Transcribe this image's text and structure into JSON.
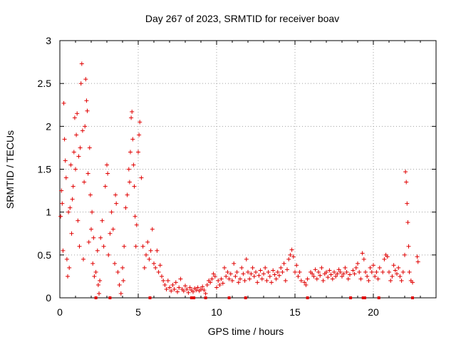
{
  "chart_data": {
    "type": "scatter",
    "title": "Day 267 of 2023, SRMTID for receiver boav",
    "xlabel": "GPS time / hours",
    "ylabel": "SRMTID / TECUs",
    "xlim": [
      0,
      24
    ],
    "ylim": [
      0,
      3
    ],
    "x_ticks": [
      0,
      5,
      10,
      15,
      20
    ],
    "x_tick_labels": [
      "0",
      "5",
      "10",
      "15",
      "20"
    ],
    "y_ticks": [
      0,
      0.5,
      1,
      1.5,
      2,
      2.5,
      3
    ],
    "y_tick_labels": [
      "0",
      "0.5",
      "1",
      "1.5",
      "2",
      "2.5",
      "3"
    ],
    "grid": true,
    "marker": "+",
    "color": "#e00000",
    "series": [
      {
        "name": "SRMTID",
        "points": [
          [
            0.05,
            0.95
          ],
          [
            0.1,
            1.25
          ],
          [
            0.15,
            1.1
          ],
          [
            0.2,
            0.55
          ],
          [
            0.25,
            2.27
          ],
          [
            0.3,
            1.85
          ],
          [
            0.35,
            1.6
          ],
          [
            0.4,
            1.4
          ],
          [
            0.45,
            0.45
          ],
          [
            0.5,
            0.25
          ],
          [
            0.55,
            1.0
          ],
          [
            0.6,
            0.35
          ],
          [
            0.65,
            1.05
          ],
          [
            0.7,
            1.55
          ],
          [
            0.75,
            0.75
          ],
          [
            0.8,
            1.15
          ],
          [
            0.85,
            1.3
          ],
          [
            0.9,
            1.7
          ],
          [
            0.95,
            2.1
          ],
          [
            1.0,
            1.5
          ],
          [
            1.05,
            1.9
          ],
          [
            1.1,
            2.15
          ],
          [
            1.15,
            0.9
          ],
          [
            1.2,
            1.65
          ],
          [
            1.25,
            0.6
          ],
          [
            1.3,
            1.75
          ],
          [
            1.35,
            2.5
          ],
          [
            1.4,
            2.73
          ],
          [
            1.45,
            1.95
          ],
          [
            1.5,
            0.45
          ],
          [
            1.55,
            1.35
          ],
          [
            1.6,
            2.0
          ],
          [
            1.65,
            2.55
          ],
          [
            1.7,
            2.3
          ],
          [
            1.75,
            2.18
          ],
          [
            1.8,
            1.45
          ],
          [
            1.85,
            0.65
          ],
          [
            1.9,
            1.75
          ],
          [
            1.95,
            1.2
          ],
          [
            2.0,
            0.8
          ],
          [
            2.05,
            1.0
          ],
          [
            2.1,
            0.4
          ],
          [
            2.15,
            0.7
          ],
          [
            2.2,
            0.25
          ],
          [
            2.3,
            0.3
          ],
          [
            2.4,
            0.55
          ],
          [
            2.45,
            0.15
          ],
          [
            2.5,
            0.05
          ],
          [
            2.55,
            0.2
          ],
          [
            2.6,
            0.7
          ],
          [
            2.7,
            0.9
          ],
          [
            2.8,
            0.6
          ],
          [
            2.9,
            1.3
          ],
          [
            3.0,
            1.55
          ],
          [
            3.05,
            1.45
          ],
          [
            3.1,
            0.5
          ],
          [
            3.2,
            0.75
          ],
          [
            3.3,
            1.0
          ],
          [
            3.4,
            0.8
          ],
          [
            3.5,
            0.4
          ],
          [
            3.55,
            1.2
          ],
          [
            3.6,
            1.1
          ],
          [
            3.7,
            0.3
          ],
          [
            3.8,
            0.15
          ],
          [
            3.9,
            0.05
          ],
          [
            4.0,
            0.35
          ],
          [
            4.05,
            0.2
          ],
          [
            4.1,
            0.6
          ],
          [
            4.2,
            1.05
          ],
          [
            4.3,
            1.2
          ],
          [
            4.4,
            1.5
          ],
          [
            4.45,
            1.35
          ],
          [
            4.5,
            1.7
          ],
          [
            4.55,
            2.1
          ],
          [
            4.6,
            2.17
          ],
          [
            4.65,
            1.85
          ],
          [
            4.7,
            1.55
          ],
          [
            4.75,
            1.3
          ],
          [
            4.8,
            0.95
          ],
          [
            4.85,
            0.6
          ],
          [
            4.9,
            0.85
          ],
          [
            5.0,
            1.7
          ],
          [
            5.05,
            1.9
          ],
          [
            5.1,
            2.05
          ],
          [
            5.2,
            1.4
          ],
          [
            5.3,
            0.6
          ],
          [
            5.4,
            0.35
          ],
          [
            5.5,
            0.5
          ],
          [
            5.6,
            0.65
          ],
          [
            5.7,
            0.45
          ],
          [
            5.8,
            0.55
          ],
          [
            5.9,
            0.8
          ],
          [
            6.0,
            0.4
          ],
          [
            6.1,
            0.35
          ],
          [
            6.2,
            0.55
          ],
          [
            6.3,
            0.3
          ],
          [
            6.4,
            0.38
          ],
          [
            6.5,
            0.25
          ],
          [
            6.6,
            0.2
          ],
          [
            6.7,
            0.15
          ],
          [
            6.8,
            0.1
          ],
          [
            6.9,
            0.2
          ],
          [
            7.0,
            0.12
          ],
          [
            7.1,
            0.08
          ],
          [
            7.2,
            0.15
          ],
          [
            7.3,
            0.1
          ],
          [
            7.4,
            0.18
          ],
          [
            7.5,
            0.07
          ],
          [
            7.6,
            0.12
          ],
          [
            7.7,
            0.22
          ],
          [
            7.8,
            0.1
          ],
          [
            7.9,
            0.08
          ],
          [
            8.0,
            0.14
          ],
          [
            8.1,
            0.1
          ],
          [
            8.2,
            0.06
          ],
          [
            8.3,
            0.12
          ],
          [
            8.4,
            0.09
          ],
          [
            8.5,
            0.07
          ],
          [
            8.6,
            0.11
          ],
          [
            8.7,
            0.09
          ],
          [
            8.8,
            0.12
          ],
          [
            8.9,
            0.08
          ],
          [
            9.0,
            0.1
          ],
          [
            9.1,
            0.13
          ],
          [
            9.2,
            0.09
          ],
          [
            9.3,
            0.05
          ],
          [
            9.4,
            0.15
          ],
          [
            9.5,
            0.2
          ],
          [
            9.6,
            0.18
          ],
          [
            9.7,
            0.22
          ],
          [
            9.8,
            0.28
          ],
          [
            9.9,
            0.25
          ],
          [
            10.0,
            0.12
          ],
          [
            10.1,
            0.2
          ],
          [
            10.2,
            0.15
          ],
          [
            10.3,
            0.22
          ],
          [
            10.4,
            0.17
          ],
          [
            10.5,
            0.35
          ],
          [
            10.6,
            0.25
          ],
          [
            10.7,
            0.3
          ],
          [
            10.8,
            0.22
          ],
          [
            10.9,
            0.28
          ],
          [
            11.0,
            0.2
          ],
          [
            11.1,
            0.4
          ],
          [
            11.2,
            0.25
          ],
          [
            11.3,
            0.3
          ],
          [
            11.4,
            0.18
          ],
          [
            11.5,
            0.22
          ],
          [
            11.6,
            0.35
          ],
          [
            11.7,
            0.28
          ],
          [
            11.8,
            0.2
          ],
          [
            11.9,
            0.45
          ],
          [
            12.0,
            0.3
          ],
          [
            12.1,
            0.22
          ],
          [
            12.2,
            0.28
          ],
          [
            12.3,
            0.35
          ],
          [
            12.4,
            0.25
          ],
          [
            12.5,
            0.3
          ],
          [
            12.6,
            0.18
          ],
          [
            12.7,
            0.26
          ],
          [
            12.8,
            0.32
          ],
          [
            12.9,
            0.22
          ],
          [
            13.0,
            0.28
          ],
          [
            13.1,
            0.35
          ],
          [
            13.2,
            0.2
          ],
          [
            13.3,
            0.3
          ],
          [
            13.4,
            0.25
          ],
          [
            13.5,
            0.18
          ],
          [
            13.6,
            0.32
          ],
          [
            13.7,
            0.27
          ],
          [
            13.8,
            0.22
          ],
          [
            13.9,
            0.3
          ],
          [
            14.0,
            0.26
          ],
          [
            14.1,
            0.35
          ],
          [
            14.2,
            0.3
          ],
          [
            14.3,
            0.4
          ],
          [
            14.4,
            0.2
          ],
          [
            14.5,
            0.33
          ],
          [
            14.6,
            0.45
          ],
          [
            14.7,
            0.5
          ],
          [
            14.8,
            0.56
          ],
          [
            14.9,
            0.48
          ],
          [
            15.0,
            0.3
          ],
          [
            15.1,
            0.38
          ],
          [
            15.2,
            0.25
          ],
          [
            15.3,
            0.3
          ],
          [
            15.4,
            0.2
          ],
          [
            15.6,
            0.18
          ],
          [
            15.7,
            0.15
          ],
          [
            15.8,
            0.22
          ],
          [
            16.0,
            0.3
          ],
          [
            16.1,
            0.28
          ],
          [
            16.2,
            0.25
          ],
          [
            16.3,
            0.33
          ],
          [
            16.4,
            0.22
          ],
          [
            16.5,
            0.3
          ],
          [
            16.6,
            0.26
          ],
          [
            16.7,
            0.35
          ],
          [
            16.8,
            0.2
          ],
          [
            16.9,
            0.28
          ],
          [
            17.0,
            0.3
          ],
          [
            17.1,
            0.24
          ],
          [
            17.2,
            0.32
          ],
          [
            17.3,
            0.27
          ],
          [
            17.4,
            0.22
          ],
          [
            17.5,
            0.3
          ],
          [
            17.6,
            0.25
          ],
          [
            17.7,
            0.28
          ],
          [
            17.8,
            0.33
          ],
          [
            17.9,
            0.3
          ],
          [
            18.0,
            0.25
          ],
          [
            18.1,
            0.28
          ],
          [
            18.2,
            0.35
          ],
          [
            18.3,
            0.3
          ],
          [
            18.4,
            0.22
          ],
          [
            18.5,
            0.27
          ],
          [
            18.7,
            0.32
          ],
          [
            18.8,
            0.28
          ],
          [
            18.9,
            0.35
          ],
          [
            19.0,
            0.4
          ],
          [
            19.1,
            0.3
          ],
          [
            19.2,
            0.22
          ],
          [
            19.3,
            0.52
          ],
          [
            19.4,
            0.45
          ],
          [
            19.5,
            0.3
          ],
          [
            19.6,
            0.25
          ],
          [
            19.7,
            0.2
          ],
          [
            19.8,
            0.35
          ],
          [
            19.9,
            0.3
          ],
          [
            20.0,
            0.38
          ],
          [
            20.1,
            0.25
          ],
          [
            20.2,
            0.3
          ],
          [
            20.3,
            0.22
          ],
          [
            20.4,
            0.35
          ],
          [
            20.6,
            0.3
          ],
          [
            20.7,
            0.45
          ],
          [
            20.8,
            0.5
          ],
          [
            20.9,
            0.48
          ],
          [
            21.0,
            0.3
          ],
          [
            21.1,
            0.2
          ],
          [
            21.2,
            0.25
          ],
          [
            21.3,
            0.38
          ],
          [
            21.4,
            0.32
          ],
          [
            21.5,
            0.28
          ],
          [
            21.6,
            0.35
          ],
          [
            21.7,
            0.25
          ],
          [
            21.8,
            0.2
          ],
          [
            21.9,
            0.3
          ],
          [
            22.0,
            0.5
          ],
          [
            22.05,
            1.47
          ],
          [
            22.1,
            1.35
          ],
          [
            22.15,
            1.1
          ],
          [
            22.2,
            0.88
          ],
          [
            22.25,
            0.6
          ],
          [
            22.3,
            0.3
          ],
          [
            22.4,
            0.2
          ],
          [
            22.5,
            0.18
          ],
          [
            22.8,
            0.48
          ],
          [
            22.85,
            0.42
          ]
        ]
      }
    ],
    "gap_markers_x": [
      2.3,
      3.2,
      5.75,
      8.4,
      8.55,
      9.3,
      10.8,
      11.85,
      15.8,
      18.55,
      19.35,
      19.45,
      20.35,
      22.5
    ]
  }
}
